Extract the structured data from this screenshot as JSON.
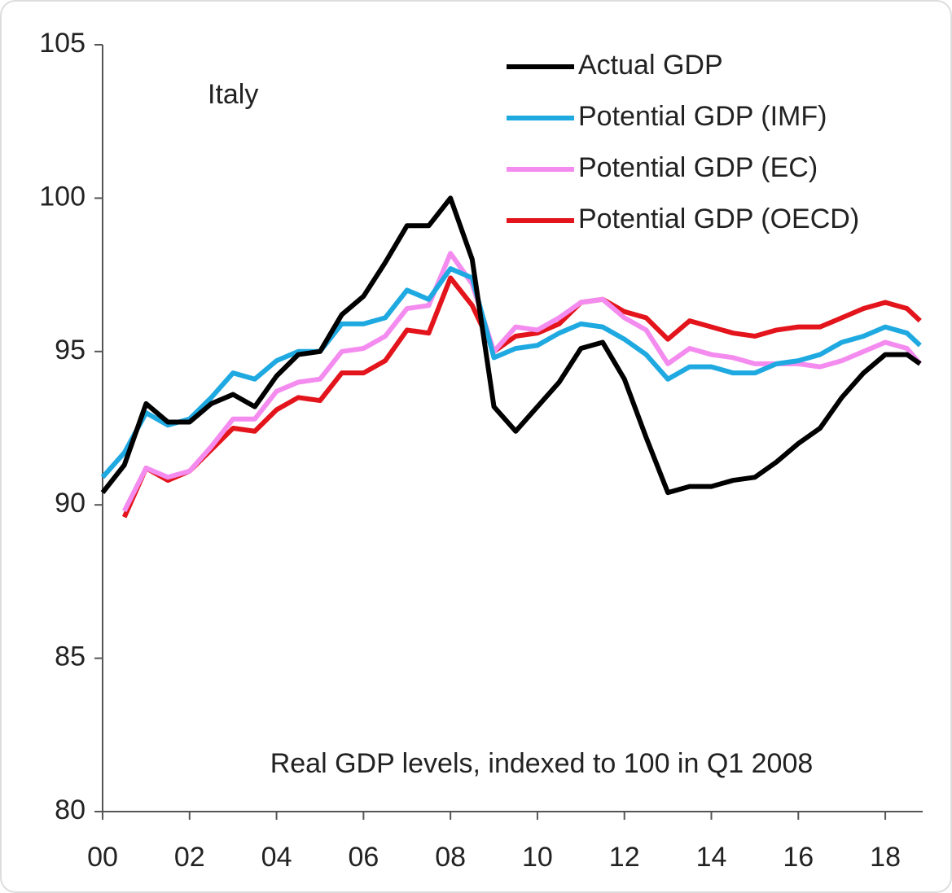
{
  "chart_data": {
    "type": "line",
    "title": "Italy",
    "annotation": "Real GDP levels, indexed to 100 in Q1 2008",
    "x": [
      2000,
      2000.5,
      2001,
      2001.5,
      2002,
      2002.5,
      2003,
      2003.5,
      2004,
      2004.5,
      2005,
      2005.5,
      2006,
      2006.5,
      2007,
      2007.5,
      2008,
      2008.5,
      2009,
      2009.5,
      2010,
      2010.5,
      2011,
      2011.5,
      2012,
      2012.5,
      2013,
      2013.5,
      2014,
      2014.5,
      2015,
      2015.5,
      2016,
      2016.5,
      2017,
      2017.5,
      2018,
      2018.5,
      2018.8
    ],
    "series": [
      {
        "name": "Actual GDP",
        "color": "#000000",
        "values": [
          90.4,
          91.3,
          93.3,
          92.7,
          92.7,
          93.3,
          93.6,
          93.2,
          94.2,
          94.9,
          95.0,
          96.2,
          96.8,
          97.9,
          99.1,
          99.1,
          100.0,
          98.0,
          93.2,
          92.4,
          93.2,
          94.0,
          95.1,
          95.3,
          94.1,
          92.2,
          90.4,
          90.6,
          90.6,
          90.8,
          90.9,
          91.4,
          92.0,
          92.5,
          93.5,
          94.3,
          94.9,
          94.9,
          94.6
        ]
      },
      {
        "name": "Potential GDP (IMF)",
        "color": "#1fa9e1",
        "values": [
          90.9,
          91.7,
          93.0,
          92.6,
          92.8,
          93.5,
          94.3,
          94.1,
          94.7,
          95.0,
          95.0,
          95.9,
          95.9,
          96.1,
          97.0,
          96.7,
          97.7,
          97.4,
          94.8,
          95.1,
          95.2,
          95.6,
          95.9,
          95.8,
          95.4,
          94.9,
          94.1,
          94.5,
          94.5,
          94.3,
          94.3,
          94.6,
          94.7,
          94.9,
          95.3,
          95.5,
          95.8,
          95.6,
          95.2
        ]
      },
      {
        "name": "Potential GDP (EC)",
        "color": "#f48cf0",
        "values": [
          null,
          89.8,
          91.2,
          90.9,
          91.1,
          91.9,
          92.8,
          92.8,
          93.7,
          94.0,
          94.1,
          95.0,
          95.1,
          95.5,
          96.4,
          96.5,
          98.2,
          97.2,
          95.0,
          95.8,
          95.7,
          96.1,
          96.6,
          96.7,
          96.1,
          95.7,
          94.6,
          95.1,
          94.9,
          94.8,
          94.6,
          94.6,
          94.6,
          94.5,
          94.7,
          95.0,
          95.3,
          95.1,
          94.6
        ]
      },
      {
        "name": "Potential GDP (OECD)",
        "color": "#e3141b",
        "values": [
          null,
          89.6,
          91.2,
          90.8,
          91.1,
          91.8,
          92.5,
          92.4,
          93.1,
          93.5,
          93.4,
          94.3,
          94.3,
          94.7,
          95.7,
          95.6,
          97.4,
          96.5,
          95.0,
          95.5,
          95.6,
          95.9,
          96.6,
          96.7,
          96.3,
          96.1,
          95.4,
          96.0,
          95.8,
          95.6,
          95.5,
          95.7,
          95.8,
          95.8,
          96.1,
          96.4,
          96.6,
          96.4,
          96.0
        ]
      }
    ],
    "xlim": [
      2000,
      2018.86
    ],
    "xticks": [
      {
        "value": 2000,
        "label": "00"
      },
      {
        "value": 2002,
        "label": "02"
      },
      {
        "value": 2004,
        "label": "04"
      },
      {
        "value": 2006,
        "label": "06"
      },
      {
        "value": 2008,
        "label": "08"
      },
      {
        "value": 2010,
        "label": "10"
      },
      {
        "value": 2012,
        "label": "12"
      },
      {
        "value": 2014,
        "label": "14"
      },
      {
        "value": 2016,
        "label": "16"
      },
      {
        "value": 2018,
        "label": "18"
      }
    ],
    "ylim": [
      80,
      105
    ],
    "yticks": [
      80,
      85,
      90,
      95,
      100,
      105
    ],
    "grid": false,
    "legend": "top-right"
  }
}
